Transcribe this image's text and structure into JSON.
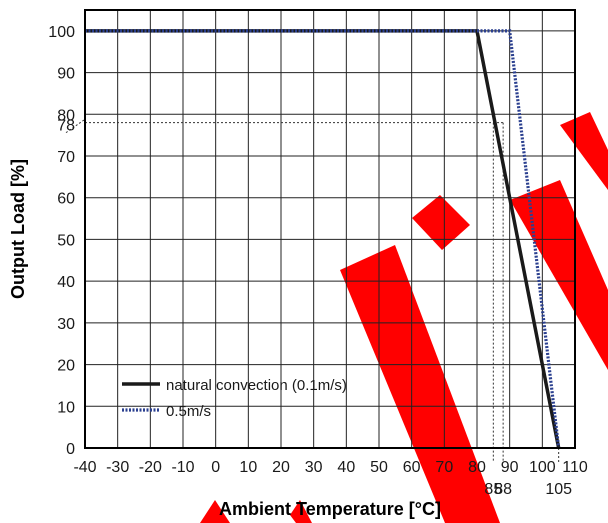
{
  "chart_data": {
    "type": "line",
    "title": "",
    "xlabel": "Ambient Temperature [°C]",
    "ylabel": "Output Load [%]",
    "xlim": [
      -40,
      110
    ],
    "ylim": [
      0,
      105
    ],
    "x_ticks": [
      "-40",
      "-30",
      "-20",
      "-10",
      "0",
      "10",
      "20",
      "30",
      "40",
      "50",
      "60",
      "70",
      "80",
      "90",
      "100",
      "110"
    ],
    "y_ticks": [
      "0",
      "10",
      "20",
      "30",
      "40",
      "50",
      "60",
      "70",
      "80",
      "90",
      "100"
    ],
    "grid": true,
    "legend_position": "bottom-left",
    "series": [
      {
        "name": "natural convection (0.1m/s)",
        "style": "solid",
        "color": "#1a1a1a",
        "x": [
          -40,
          80,
          105
        ],
        "y": [
          100,
          100,
          0
        ]
      },
      {
        "name": "0.5m/s",
        "style": "dotted",
        "color": "#2a3f8f",
        "x": [
          -40,
          90,
          105
        ],
        "y": [
          100,
          100,
          0
        ]
      }
    ],
    "annotations": [
      {
        "axis": "y",
        "value": 78,
        "label": "78"
      },
      {
        "axis": "x",
        "value": 85,
        "label": "85"
      },
      {
        "axis": "x",
        "value": 88,
        "label": "88"
      },
      {
        "axis": "x",
        "value": 105,
        "label": "105"
      }
    ],
    "watermark_color": "#ff0000"
  }
}
